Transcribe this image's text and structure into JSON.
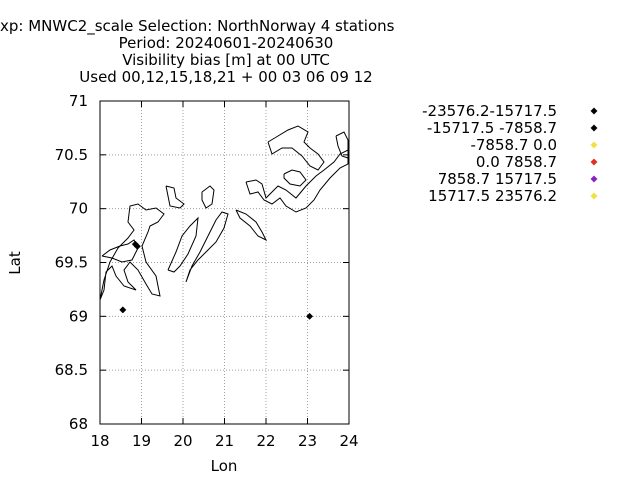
{
  "title_lines": [
    "xp: MNWC2_scale   Selection: NorthNorway       4 stations",
    "Period: 20240601-20240630",
    "Visibility bias [m] at  00 UTC",
    "Used 00,12,15,18,21 + 00 03 06 09 12"
  ],
  "chart_data": {
    "type": "scatter",
    "xlabel": "Lon",
    "ylabel": "Lat",
    "xlim": [
      18,
      24
    ],
    "ylim": [
      68,
      71
    ],
    "xticks": [
      18,
      19,
      20,
      21,
      22,
      23,
      24
    ],
    "yticks": [
      68,
      68.5,
      69,
      69.5,
      70,
      70.5,
      71
    ],
    "grid": true,
    "legend_position": "right",
    "series": [
      {
        "name": "-23576.2-15717.5",
        "color": "#000000",
        "points": []
      },
      {
        "name": "-15717.5 -7858.7",
        "color": "#000000",
        "points": [
          [
            18.55,
            69.06
          ],
          [
            18.85,
            69.67
          ],
          [
            18.9,
            69.65
          ],
          [
            23.05,
            69.0
          ]
        ]
      },
      {
        "name": "-7858.7 0.0",
        "color": "#f0e040",
        "points": []
      },
      {
        "name": "0.0 7858.7",
        "color": "#e03020",
        "points": []
      },
      {
        "name": "7858.7 15717.5",
        "color": "#8a20c0",
        "points": []
      },
      {
        "name": "15717.5 23576.2",
        "color": "#f0e040",
        "points": []
      }
    ]
  }
}
